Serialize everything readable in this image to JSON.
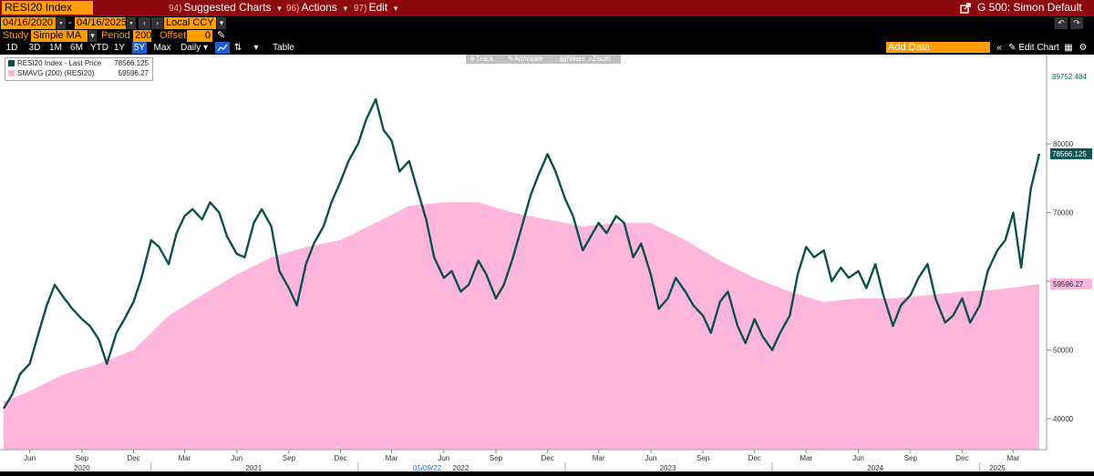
{
  "toolbar": {
    "security": "RESI20 Index",
    "suggested_icon": "94)",
    "suggested": "Suggested Charts",
    "actions_icon": "96)",
    "actions": "Actions",
    "edit_icon": "97)",
    "edit": "Edit",
    "template": "G 500: Simon Default"
  },
  "range": {
    "start": "04/16/2020",
    "sep": "-",
    "end": "04/16/2025",
    "currency": "Local CCY"
  },
  "study": {
    "label": "Study",
    "type": "Simple MA",
    "period_label": "Period",
    "period": "200",
    "offset_label": "Offset",
    "offset": "0"
  },
  "periods": [
    "1D",
    "3D",
    "1M",
    "6M",
    "YTD",
    "1Y",
    "5Y",
    "Max"
  ],
  "active_period": "5Y",
  "frequency": "Daily",
  "table_label": "Table",
  "add_data": "Add Data",
  "edit_chart": "Edit Chart",
  "chart_tools": [
    "Track",
    "Annotate",
    "News",
    "Zoom"
  ],
  "legend": {
    "price_name": "RESI20 Index - Last Price",
    "price_value": "78566.125",
    "ma_name": "SMAVG (200) (RESI20)",
    "ma_value": "59596.27"
  },
  "colors": {
    "price_line": "#0d4f4a",
    "ma_area": "#ffb6dc",
    "accent": "#ff9d00",
    "header": "#8c0a0e"
  },
  "icons": {
    "share": "share-icon",
    "undo": "undo-icon",
    "redo": "redo-icon",
    "settings": "gear-icon",
    "pencil": "pencil-icon"
  },
  "chart_data": {
    "type": "line",
    "title": "RESI20 Index",
    "ylim": [
      35500,
      93000
    ],
    "y_ticks": [
      40000,
      50000,
      60000,
      70000,
      80000
    ],
    "max_label": "89752.484",
    "x_month_ticks": [
      {
        "label": "Jun",
        "date": "2020-06-01"
      },
      {
        "label": "Sep",
        "date": "2020-09-01"
      },
      {
        "label": "Dec",
        "date": "2020-12-01"
      },
      {
        "label": "Mar",
        "date": "2021-03-01"
      },
      {
        "label": "Jun",
        "date": "2021-06-01"
      },
      {
        "label": "Sep",
        "date": "2021-09-01"
      },
      {
        "label": "Dec",
        "date": "2021-12-01"
      },
      {
        "label": "Mar",
        "date": "2022-03-01"
      },
      {
        "label": "Jun",
        "date": "2022-06-01"
      },
      {
        "label": "Sep",
        "date": "2022-09-01"
      },
      {
        "label": "Dec",
        "date": "2022-12-01"
      },
      {
        "label": "Mar",
        "date": "2023-03-01"
      },
      {
        "label": "Jun",
        "date": "2023-06-01"
      },
      {
        "label": "Sep",
        "date": "2023-09-01"
      },
      {
        "label": "Dec",
        "date": "2023-12-01"
      },
      {
        "label": "Mar",
        "date": "2024-03-01"
      },
      {
        "label": "Jun",
        "date": "2024-06-01"
      },
      {
        "label": "Sep",
        "date": "2024-09-01"
      },
      {
        "label": "Dec",
        "date": "2024-12-01"
      },
      {
        "label": "Mar",
        "date": "2025-03-01"
      }
    ],
    "x_year_labels": [
      {
        "label": "2020",
        "date": "2020-09-01"
      },
      {
        "label": "2021",
        "date": "2021-07-01"
      },
      {
        "label": "2022",
        "date": "2022-07-01"
      },
      {
        "label": "2023",
        "date": "2023-07-01"
      },
      {
        "label": "2024",
        "date": "2024-07-01"
      },
      {
        "label": "2025",
        "date": "2025-02-01"
      }
    ],
    "x_marker": {
      "label": "05/09/22",
      "date": "2022-05-09"
    },
    "series": [
      {
        "name": "RESI20 Index - Last Price",
        "points": [
          [
            "2020-04-16",
            41500
          ],
          [
            "2020-05-01",
            43500
          ],
          [
            "2020-05-15",
            46500
          ],
          [
            "2020-06-01",
            48000
          ],
          [
            "2020-06-15",
            52000
          ],
          [
            "2020-07-01",
            56500
          ],
          [
            "2020-07-15",
            59500
          ],
          [
            "2020-08-01",
            57500
          ],
          [
            "2020-08-15",
            56000
          ],
          [
            "2020-09-01",
            54500
          ],
          [
            "2020-09-15",
            53500
          ],
          [
            "2020-10-01",
            51500
          ],
          [
            "2020-10-15",
            48000
          ],
          [
            "2020-11-01",
            52500
          ],
          [
            "2020-11-15",
            54500
          ],
          [
            "2020-12-01",
            57000
          ],
          [
            "2020-12-15",
            60500
          ],
          [
            "2021-01-01",
            66000
          ],
          [
            "2021-01-15",
            65000
          ],
          [
            "2021-02-01",
            62500
          ],
          [
            "2021-02-15",
            67000
          ],
          [
            "2021-03-01",
            69500
          ],
          [
            "2021-03-15",
            70500
          ],
          [
            "2021-04-01",
            69000
          ],
          [
            "2021-04-15",
            71500
          ],
          [
            "2021-05-01",
            70000
          ],
          [
            "2021-05-15",
            66500
          ],
          [
            "2021-06-01",
            64000
          ],
          [
            "2021-06-15",
            63500
          ],
          [
            "2021-07-01",
            68500
          ],
          [
            "2021-07-15",
            70500
          ],
          [
            "2021-08-01",
            68000
          ],
          [
            "2021-08-15",
            61500
          ],
          [
            "2021-09-01",
            59000
          ],
          [
            "2021-09-15",
            56500
          ],
          [
            "2021-10-01",
            62500
          ],
          [
            "2021-10-15",
            65500
          ],
          [
            "2021-11-01",
            68000
          ],
          [
            "2021-11-15",
            71500
          ],
          [
            "2021-12-01",
            74500
          ],
          [
            "2021-12-15",
            77500
          ],
          [
            "2022-01-01",
            80000
          ],
          [
            "2022-01-15",
            83500
          ],
          [
            "2022-02-01",
            86500
          ],
          [
            "2022-02-15",
            82000
          ],
          [
            "2022-03-01",
            80500
          ],
          [
            "2022-03-15",
            76000
          ],
          [
            "2022-04-01",
            77500
          ],
          [
            "2022-04-15",
            73500
          ],
          [
            "2022-05-01",
            69000
          ],
          [
            "2022-05-15",
            63500
          ],
          [
            "2022-06-01",
            60500
          ],
          [
            "2022-06-15",
            61500
          ],
          [
            "2022-07-01",
            58500
          ],
          [
            "2022-07-15",
            59500
          ],
          [
            "2022-08-01",
            63000
          ],
          [
            "2022-08-15",
            61000
          ],
          [
            "2022-09-01",
            57500
          ],
          [
            "2022-09-15",
            59500
          ],
          [
            "2022-10-01",
            63500
          ],
          [
            "2022-10-15",
            67500
          ],
          [
            "2022-11-01",
            72500
          ],
          [
            "2022-11-15",
            75500
          ],
          [
            "2022-12-01",
            78500
          ],
          [
            "2022-12-15",
            76000
          ],
          [
            "2023-01-01",
            72000
          ],
          [
            "2023-01-15",
            69500
          ],
          [
            "2023-02-01",
            64500
          ],
          [
            "2023-02-15",
            66500
          ],
          [
            "2023-03-01",
            68500
          ],
          [
            "2023-03-15",
            67000
          ],
          [
            "2023-04-01",
            69500
          ],
          [
            "2023-04-15",
            68500
          ],
          [
            "2023-05-01",
            63500
          ],
          [
            "2023-05-15",
            65500
          ],
          [
            "2023-06-01",
            61000
          ],
          [
            "2023-06-15",
            56000
          ],
          [
            "2023-07-01",
            57500
          ],
          [
            "2023-07-15",
            60500
          ],
          [
            "2023-08-01",
            58500
          ],
          [
            "2023-08-15",
            56500
          ],
          [
            "2023-09-01",
            55000
          ],
          [
            "2023-09-15",
            52500
          ],
          [
            "2023-10-01",
            57000
          ],
          [
            "2023-10-15",
            58500
          ],
          [
            "2023-11-01",
            53500
          ],
          [
            "2023-11-15",
            51000
          ],
          [
            "2023-12-01",
            54500
          ],
          [
            "2023-12-15",
            52000
          ],
          [
            "2024-01-01",
            50000
          ],
          [
            "2024-01-15",
            52500
          ],
          [
            "2024-02-01",
            55000
          ],
          [
            "2024-02-15",
            61000
          ],
          [
            "2024-03-01",
            65000
          ],
          [
            "2024-03-15",
            63500
          ],
          [
            "2024-04-01",
            64500
          ],
          [
            "2024-04-15",
            60000
          ],
          [
            "2024-05-01",
            62000
          ],
          [
            "2024-05-15",
            60500
          ],
          [
            "2024-06-01",
            61500
          ],
          [
            "2024-06-15",
            59000
          ],
          [
            "2024-07-01",
            62500
          ],
          [
            "2024-07-15",
            58000
          ],
          [
            "2024-08-01",
            53500
          ],
          [
            "2024-08-15",
            56500
          ],
          [
            "2024-09-01",
            58000
          ],
          [
            "2024-09-15",
            60500
          ],
          [
            "2024-10-01",
            62500
          ],
          [
            "2024-10-15",
            57500
          ],
          [
            "2024-11-01",
            54000
          ],
          [
            "2024-11-15",
            55000
          ],
          [
            "2024-12-01",
            57500
          ],
          [
            "2024-12-15",
            54000
          ],
          [
            "2025-01-01",
            56500
          ],
          [
            "2025-01-15",
            61500
          ],
          [
            "2025-02-01",
            64500
          ],
          [
            "2025-02-15",
            66000
          ],
          [
            "2025-03-01",
            70000
          ],
          [
            "2025-03-15",
            62000
          ],
          [
            "2025-04-01",
            73500
          ],
          [
            "2025-04-16",
            78566.125
          ]
        ]
      },
      {
        "name": "SMAVG (200) (RESI20)",
        "points": [
          [
            "2020-04-16",
            42500
          ],
          [
            "2020-06-01",
            44000
          ],
          [
            "2020-08-01",
            46500
          ],
          [
            "2020-10-01",
            48000
          ],
          [
            "2020-12-01",
            50000
          ],
          [
            "2021-02-01",
            55000
          ],
          [
            "2021-04-01",
            58000
          ],
          [
            "2021-06-01",
            61000
          ],
          [
            "2021-08-01",
            63500
          ],
          [
            "2021-10-01",
            65000
          ],
          [
            "2021-12-01",
            66000
          ],
          [
            "2022-02-01",
            68500
          ],
          [
            "2022-04-01",
            71000
          ],
          [
            "2022-06-01",
            71500
          ],
          [
            "2022-08-01",
            71500
          ],
          [
            "2022-10-01",
            70000
          ],
          [
            "2022-12-01",
            69000
          ],
          [
            "2023-02-01",
            68000
          ],
          [
            "2023-04-01",
            68500
          ],
          [
            "2023-06-01",
            68500
          ],
          [
            "2023-08-01",
            66000
          ],
          [
            "2023-10-01",
            63000
          ],
          [
            "2023-12-01",
            60500
          ],
          [
            "2024-02-01",
            58500
          ],
          [
            "2024-04-01",
            57000
          ],
          [
            "2024-06-01",
            57500
          ],
          [
            "2024-08-01",
            57500
          ],
          [
            "2024-10-01",
            58000
          ],
          [
            "2024-12-01",
            58500
          ],
          [
            "2025-02-01",
            58800
          ],
          [
            "2025-04-16",
            59596.27
          ]
        ]
      }
    ]
  }
}
